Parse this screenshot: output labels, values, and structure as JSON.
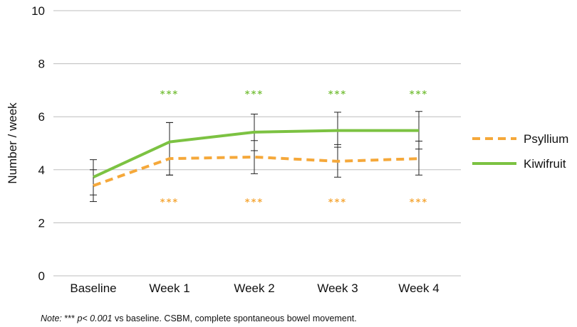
{
  "chart_data": {
    "type": "line",
    "categories": [
      "Baseline",
      "Week 1",
      "Week 2",
      "Week 3",
      "Week 4"
    ],
    "ylabel": "Number / week",
    "ylim": [
      0,
      10
    ],
    "yticks": [
      0,
      2,
      4,
      6,
      8,
      10
    ],
    "grid": true,
    "legend_position": "right",
    "series": [
      {
        "name": "Psyllium",
        "style": "dashed",
        "color": "#F5A83A",
        "values": [
          3.4,
          4.42,
          4.48,
          4.32,
          4.42
        ],
        "error_low": [
          2.8,
          3.8,
          3.85,
          3.72,
          3.8
        ],
        "error_high": [
          4.0,
          5.78,
          5.1,
          4.95,
          5.08
        ],
        "significance": [
          "",
          "***",
          "***",
          "***",
          "***"
        ]
      },
      {
        "name": "Kiwifruit",
        "style": "solid",
        "color": "#7CC242",
        "values": [
          3.72,
          5.05,
          5.42,
          5.48,
          5.48
        ],
        "error_low": [
          3.05,
          3.8,
          4.72,
          4.85,
          4.78
        ],
        "error_high": [
          4.38,
          5.78,
          6.1,
          6.17,
          6.2
        ],
        "significance": [
          "",
          "***",
          "***",
          "***",
          "***"
        ]
      }
    ]
  },
  "note": {
    "prefix": "Note:",
    "stars": "***",
    "p_value": "p< 0.001",
    "text": "vs baseline. CSBM, complete spontaneous bowel movement."
  }
}
